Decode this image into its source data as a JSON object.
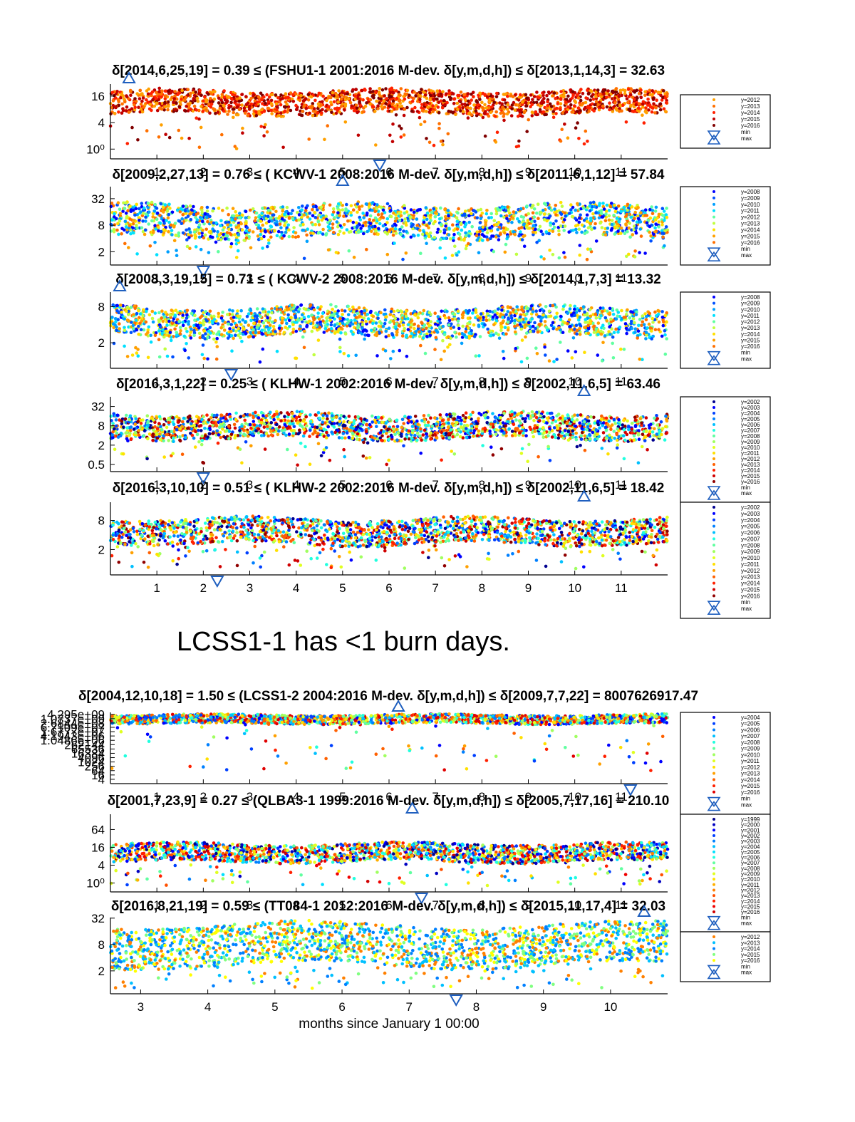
{
  "note": "LCSS1-1 has <1 burn days.",
  "x_axis_label": "months since January 1 00:00",
  "palette": [
    "#00008f",
    "#0000ff",
    "#0070ff",
    "#00c8ff",
    "#40ffbf",
    "#9fff60",
    "#ffff00",
    "#ffa000",
    "#ff4000",
    "#e00000",
    "#800000"
  ],
  "marker_color": "#1f5fbf",
  "legend_min_label": "min",
  "legend_max_label": "max",
  "chart_data": [
    {
      "type": "scatter",
      "scale": "log2",
      "title": "δ[2014,6,25,19] =  0.39 ≤ (FSHU1-1 2001:2016 M-dev. δ[y,m,d,h]) ≤ δ[2013,1,14,3] = 32.63",
      "xlim": [
        0,
        12
      ],
      "ylim": [
        0.6,
        30
      ],
      "yticks": [
        {
          "v": 1,
          "label": "10⁰"
        },
        {
          "v": 4,
          "label": "4"
        },
        {
          "v": 16,
          "label": "16"
        }
      ],
      "xticks": [
        1,
        2,
        3,
        4,
        5,
        6,
        7,
        8,
        9,
        10,
        11
      ],
      "min_marker": {
        "x": 5.8,
        "y": 0.39
      },
      "max_marker": {
        "x": 0.4,
        "y": 32.63
      },
      "years": [
        "y=2012",
        "y=2013",
        "y=2014",
        "y=2015",
        "y=2016"
      ],
      "year_colors": [
        "#ffa000",
        "#ff7000",
        "#ff2000",
        "#c00000",
        "#800000"
      ],
      "band": {
        "lo": 6,
        "hi": 22
      }
    },
    {
      "type": "scatter",
      "scale": "log2",
      "title": "δ[2009,2,27,13] =  0.76 ≤ ( KCWV-1 2008:2016 M-dev. δ[y,m,d,h]) ≤ δ[2011,6,1,12] = 57.84",
      "xlim": [
        0,
        12
      ],
      "ylim": [
        1,
        60
      ],
      "yticks": [
        {
          "v": 2,
          "label": "2"
        },
        {
          "v": 8,
          "label": "8"
        },
        {
          "v": 32,
          "label": "32"
        }
      ],
      "xticks": [
        1,
        2,
        3,
        4,
        5,
        6,
        7,
        8,
        9,
        10,
        11
      ],
      "min_marker": {
        "x": 2.0,
        "y": 0.76
      },
      "max_marker": {
        "x": 5.0,
        "y": 57.84
      },
      "years": [
        "y=2008",
        "y=2009",
        "y=2010",
        "y=2011",
        "y=2012",
        "y=2013",
        "y=2014",
        "y=2015",
        "y=2016"
      ],
      "year_colors": [
        "#0000ff",
        "#0050ff",
        "#00a0ff",
        "#00e0ff",
        "#60ffa0",
        "#c0ff40",
        "#ffe000",
        "#ffa000",
        "#ff7000"
      ],
      "band": {
        "lo": 4,
        "hi": 24
      }
    },
    {
      "type": "scatter",
      "scale": "log2",
      "title": "δ[2008,3,19,15] =  0.71 ≤ ( KCWV-2 2008:2016 M-dev. δ[y,m,d,h]) ≤ δ[2014,1,7,3] = 13.32",
      "xlim": [
        0,
        12
      ],
      "ylim": [
        0.75,
        14
      ],
      "yticks": [
        {
          "v": 2,
          "label": "2"
        },
        {
          "v": 8,
          "label": "8"
        }
      ],
      "xticks": [
        1,
        2,
        3,
        4,
        5,
        6,
        7,
        8,
        9,
        10,
        11
      ],
      "min_marker": {
        "x": 2.6,
        "y": 0.71
      },
      "max_marker": {
        "x": 0.2,
        "y": 13.32
      },
      "years": [
        "y=2008",
        "y=2009",
        "y=2010",
        "y=2011",
        "y=2012",
        "y=2013",
        "y=2014",
        "y=2015",
        "y=2016"
      ],
      "year_colors": [
        "#0000ff",
        "#0050ff",
        "#00a0ff",
        "#00e0ff",
        "#60ffa0",
        "#c0ff40",
        "#ffe000",
        "#ffa000",
        "#ff7000"
      ],
      "band": {
        "lo": 2.5,
        "hi": 8
      }
    },
    {
      "type": "scatter",
      "scale": "log2",
      "title": "δ[2016,3,1,22] =  0.25 ≤ ( KLHW-1 2002:2016 M-dev. δ[y,m,d,h]) ≤ δ[2002,11,6,5] = 63.46",
      "xlim": [
        0,
        12
      ],
      "ylim": [
        0.3,
        64
      ],
      "yticks": [
        {
          "v": 0.5,
          "label": "0.5"
        },
        {
          "v": 2,
          "label": "2"
        },
        {
          "v": 8,
          "label": "8"
        },
        {
          "v": 32,
          "label": "32"
        }
      ],
      "xticks": [
        1,
        2,
        3,
        4,
        5,
        6,
        7,
        8,
        9,
        10,
        11
      ],
      "min_marker": {
        "x": 2.0,
        "y": 0.25
      },
      "max_marker": {
        "x": 10.2,
        "y": 63.46
      },
      "years": [
        "y=2002",
        "y=2003",
        "y=2004",
        "y=2005",
        "y=2006",
        "y=2007",
        "y=2008",
        "y=2009",
        "y=2010",
        "y=2011",
        "y=2012",
        "y=2013",
        "y=2014",
        "y=2015",
        "y=2016"
      ],
      "year_colors": [
        "#00008f",
        "#0000ff",
        "#0040ff",
        "#0080ff",
        "#00c0ff",
        "#20ffdf",
        "#60ffa0",
        "#a0ff60",
        "#e0ff20",
        "#ffe000",
        "#ffa000",
        "#ff6000",
        "#ff2000",
        "#d00000",
        "#900000"
      ],
      "band": {
        "lo": 3,
        "hi": 20
      }
    },
    {
      "type": "scatter",
      "scale": "log2",
      "title": "δ[2016,3,10,10] =  0.51 ≤ ( KLHW-2 2002:2016 M-dev. δ[y,m,d,h]) ≤ δ[2002,11,6,5] = 18.42",
      "xlim": [
        0,
        12
      ],
      "ylim": [
        0.6,
        19
      ],
      "yticks": [
        {
          "v": 2,
          "label": "2"
        },
        {
          "v": 8,
          "label": "8"
        }
      ],
      "xticks": [
        1,
        2,
        3,
        4,
        5,
        6,
        7,
        8,
        9,
        10,
        11
      ],
      "min_marker": {
        "x": 2.3,
        "y": 0.51
      },
      "max_marker": {
        "x": 10.2,
        "y": 18.42
      },
      "years": [
        "y=2002",
        "y=2003",
        "y=2004",
        "y=2005",
        "y=2006",
        "y=2007",
        "y=2008",
        "y=2009",
        "y=2010",
        "y=2011",
        "y=2012",
        "y=2013",
        "y=2014",
        "y=2015",
        "y=2016"
      ],
      "year_colors": [
        "#00008f",
        "#0000ff",
        "#0040ff",
        "#0080ff",
        "#00c0ff",
        "#20ffdf",
        "#60ffa0",
        "#a0ff60",
        "#e0ff20",
        "#ffe000",
        "#ffa000",
        "#ff6000",
        "#ff2000",
        "#d00000",
        "#900000"
      ],
      "band": {
        "lo": 2.5,
        "hi": 9
      }
    },
    {
      "type": "scatter",
      "scale": "log2",
      "title": "δ[2004,12,10,18] =  1.50 ≤ (LCSS1-2 2004:2016 M-dev. δ[y,m,d,h]) ≤ δ[2009,7,7,22] = 8007626917.47",
      "xlim": [
        0,
        12
      ],
      "ylim": [
        1,
        8007626917.47
      ],
      "yticks": [
        {
          "v": 4,
          "label": "4"
        },
        {
          "v": 16,
          "label": "16"
        },
        {
          "v": 64,
          "label": "64"
        },
        {
          "v": 256,
          "label": "256"
        },
        {
          "v": 1024,
          "label": "1024"
        },
        {
          "v": 4096,
          "label": "4096"
        },
        {
          "v": 16384,
          "label": "16384"
        },
        {
          "v": 65536,
          "label": "65536"
        },
        {
          "v": 262144,
          "label": "262144"
        },
        {
          "v": 1048576,
          "label": "1.0486e+06"
        },
        {
          "v": 4194304,
          "label": "4.1943e+06"
        },
        {
          "v": 16777216,
          "label": "1.6777e+07"
        },
        {
          "v": 67108864,
          "label": "6.7109e+07"
        },
        {
          "v": 268435456,
          "label": "2.6844e+08"
        },
        {
          "v": 1073741824,
          "label": "1.0737e+09"
        },
        {
          "v": 4294967296,
          "label": "4.295e+09"
        }
      ],
      "xticks": [
        1,
        2,
        3,
        4,
        5,
        6,
        7,
        8,
        9,
        10,
        11
      ],
      "min_marker": {
        "x": 11.2,
        "y": 1.5
      },
      "max_marker": {
        "x": 6.2,
        "y": 8007626917.47
      },
      "years": [
        "y=2004",
        "y=2005",
        "y=2006",
        "y=2007",
        "y=2008",
        "y=2009",
        "y=2010",
        "y=2011",
        "y=2012",
        "y=2013",
        "y=2014",
        "y=2015",
        "y=2016"
      ],
      "year_colors": [
        "#0000ff",
        "#0040ff",
        "#0080ff",
        "#00c0ff",
        "#20ffdf",
        "#60ffa0",
        "#a0ff60",
        "#e0ff20",
        "#ffe000",
        "#ffa000",
        "#ff6000",
        "#ff2000",
        "#e00000"
      ],
      "band": {
        "lo": 200000000,
        "hi": 4000000000
      }
    },
    {
      "type": "scatter",
      "scale": "log2",
      "title": "δ[2001,7,23,9] =  0.27 ≤ (QLBA3-1 1999:2016 M-dev. δ[y,m,d,h]) ≤ δ[2005,7,17,16] = 210.10",
      "xlim": [
        0,
        12
      ],
      "ylim": [
        0.5,
        210
      ],
      "yticks": [
        {
          "v": 1,
          "label": "10⁰"
        },
        {
          "v": 4,
          "label": "4"
        },
        {
          "v": 16,
          "label": "16"
        },
        {
          "v": 64,
          "label": "64"
        }
      ],
      "xticks": [
        1,
        2,
        3,
        4,
        5,
        6,
        7,
        8,
        9,
        10,
        11
      ],
      "min_marker": {
        "x": 6.7,
        "y": 0.27
      },
      "max_marker": {
        "x": 6.5,
        "y": 210.1
      },
      "years": [
        "y=1999",
        "y=2000",
        "y=2001",
        "y=2002",
        "y=2003",
        "y=2004",
        "y=2005",
        "y=2006",
        "y=2007",
        "y=2008",
        "y=2009",
        "y=2010",
        "y=2011",
        "y=2012",
        "y=2013",
        "y=2014",
        "y=2015",
        "y=2016"
      ],
      "year_colors": [
        "#00008f",
        "#0000c0",
        "#0000ff",
        "#0040ff",
        "#0080ff",
        "#00c0ff",
        "#00e0ff",
        "#20ffdf",
        "#60ffa0",
        "#a0ff60",
        "#e0ff20",
        "#ffe000",
        "#ffb000",
        "#ff8000",
        "#ff5000",
        "#ff2000",
        "#f00000",
        "#d00000"
      ],
      "band": {
        "lo": 5,
        "hi": 22
      }
    },
    {
      "type": "scatter",
      "scale": "log2",
      "title": "δ[2016,8,21,19] =  0.59 ≤ (TT084-1 2012:2016 M-dev. δ[y,m,d,h]) ≤ δ[2015,11,17,4] = 32.03",
      "xlim": [
        2.55,
        10.85
      ],
      "ylim": [
        0.6,
        33
      ],
      "yticks": [
        {
          "v": 2,
          "label": "2"
        },
        {
          "v": 8,
          "label": "8"
        },
        {
          "v": 32,
          "label": "32"
        }
      ],
      "xticks": [
        3,
        4,
        5,
        6,
        7,
        8,
        9,
        10
      ],
      "min_marker": {
        "x": 7.7,
        "y": 0.59
      },
      "max_marker": {
        "x": 10.5,
        "y": 32.03
      },
      "years": [
        "y=2012",
        "y=2013",
        "y=2014",
        "y=2015",
        "y=2016"
      ],
      "year_colors": [
        "#ff8000",
        "#00c0ff",
        "#0080ff",
        "#80ff80",
        "#ffff00"
      ],
      "band": {
        "lo": 2.5,
        "hi": 24
      }
    }
  ]
}
